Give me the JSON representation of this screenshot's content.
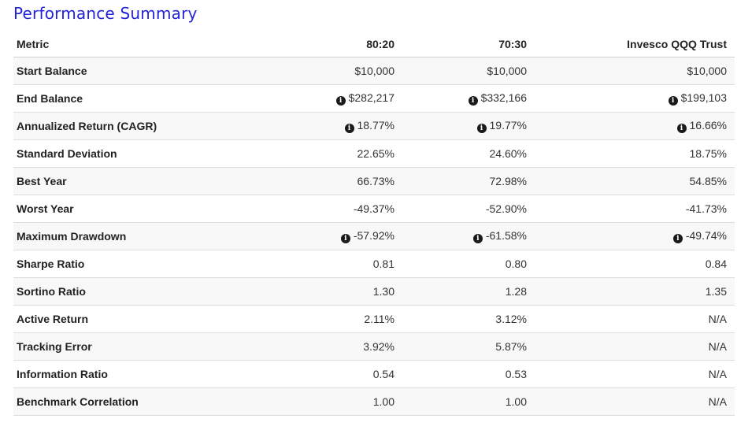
{
  "title": "Performance Summary",
  "columns": [
    "Metric",
    "80:20",
    "70:30",
    "Invesco QQQ Trust"
  ],
  "rows": [
    {
      "metric": "Start Balance",
      "values": [
        "$10,000",
        "$10,000",
        "$10,000"
      ],
      "info": false
    },
    {
      "metric": "End Balance",
      "values": [
        "$282,217",
        "$332,166",
        "$199,103"
      ],
      "info": true
    },
    {
      "metric": "Annualized Return (CAGR)",
      "values": [
        "18.77%",
        "19.77%",
        "16.66%"
      ],
      "info": true
    },
    {
      "metric": "Standard Deviation",
      "values": [
        "22.65%",
        "24.60%",
        "18.75%"
      ],
      "info": false
    },
    {
      "metric": "Best Year",
      "values": [
        "66.73%",
        "72.98%",
        "54.85%"
      ],
      "info": false
    },
    {
      "metric": "Worst Year",
      "values": [
        "-49.37%",
        "-52.90%",
        "-41.73%"
      ],
      "info": false
    },
    {
      "metric": "Maximum Drawdown",
      "values": [
        "-57.92%",
        "-61.58%",
        "-49.74%"
      ],
      "info": true
    },
    {
      "metric": "Sharpe Ratio",
      "values": [
        "0.81",
        "0.80",
        "0.84"
      ],
      "info": false
    },
    {
      "metric": "Sortino Ratio",
      "values": [
        "1.30",
        "1.28",
        "1.35"
      ],
      "info": false
    },
    {
      "metric": "Active Return",
      "values": [
        "2.11%",
        "3.12%",
        "N/A"
      ],
      "info": false
    },
    {
      "metric": "Tracking Error",
      "values": [
        "3.92%",
        "5.87%",
        "N/A"
      ],
      "info": false
    },
    {
      "metric": "Information Ratio",
      "values": [
        "0.54",
        "0.53",
        "N/A"
      ],
      "info": false
    },
    {
      "metric": "Benchmark Correlation",
      "values": [
        "1.00",
        "1.00",
        "N/A"
      ],
      "info": false
    }
  ],
  "icons": {
    "info": "info-circle-icon"
  },
  "colors": {
    "title": "#2323d6",
    "row_stripe": "#f8f8f8"
  }
}
